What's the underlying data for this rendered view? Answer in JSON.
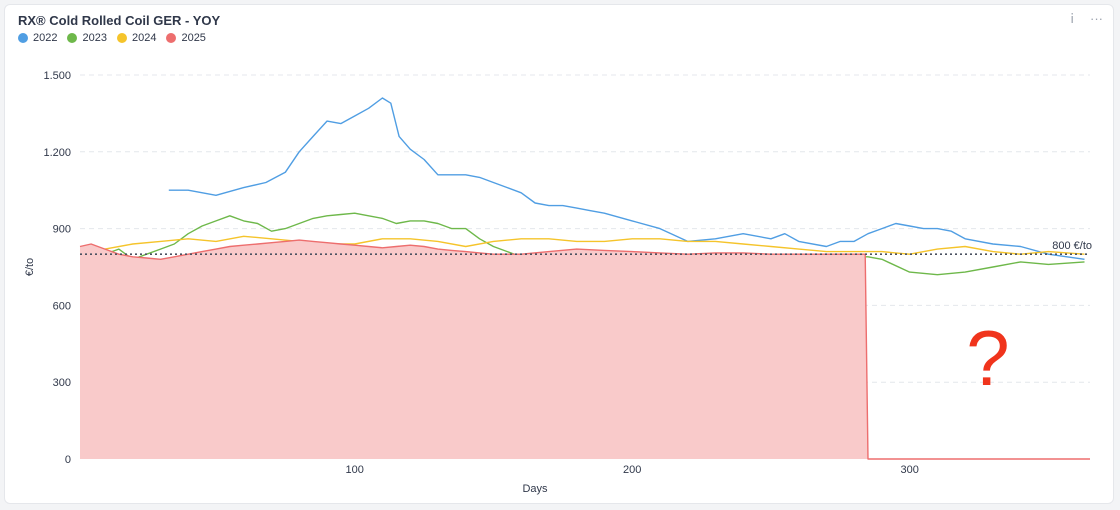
{
  "header": {
    "title": "RX® Cold Rolled Coil GER - YOY",
    "info_icon": "info-icon",
    "more_icon": "more-icon"
  },
  "annotation": {
    "question_mark": "?",
    "question_color": "#f0341c"
  },
  "chart_data": {
    "type": "line",
    "title": "RX® Cold Rolled Coil GER - YOY",
    "xlabel": "Days",
    "ylabel": "€/to",
    "xlim": [
      1,
      365
    ],
    "ylim": [
      0,
      1500
    ],
    "x_ticks": [
      100,
      200,
      300
    ],
    "x_tick_labels": [
      "100",
      "200",
      "300"
    ],
    "y_ticks": [
      0,
      300,
      600,
      900,
      1200,
      1500
    ],
    "y_tick_labels": [
      "0",
      "300",
      "600",
      "900",
      "1.200",
      "1.500"
    ],
    "grid": "horizontal dashed",
    "legend": "top-left",
    "reference_line": {
      "value": 800,
      "label": "800 €/to",
      "style": "dotted"
    },
    "series": [
      {
        "name": "2022",
        "color": "#509ee3",
        "x": [
          33,
          40,
          50,
          60,
          68,
          75,
          80,
          85,
          90,
          95,
          100,
          105,
          110,
          113,
          116,
          120,
          125,
          130,
          135,
          140,
          145,
          150,
          155,
          160,
          165,
          170,
          175,
          180,
          185,
          190,
          200,
          210,
          220,
          230,
          240,
          250,
          255,
          260,
          270,
          275,
          280,
          285,
          290,
          295,
          300,
          305,
          310,
          315,
          320,
          330,
          340,
          350,
          363
        ],
        "y": [
          1050,
          1050,
          1030,
          1060,
          1080,
          1120,
          1200,
          1260,
          1320,
          1310,
          1340,
          1370,
          1410,
          1390,
          1260,
          1210,
          1170,
          1110,
          1110,
          1110,
          1100,
          1080,
          1060,
          1040,
          1000,
          990,
          990,
          980,
          970,
          960,
          930,
          900,
          850,
          860,
          880,
          860,
          880,
          850,
          830,
          850,
          850,
          880,
          900,
          920,
          910,
          900,
          900,
          890,
          860,
          840,
          830,
          800,
          780
        ]
      },
      {
        "name": "2023",
        "color": "#6eb84a",
        "x": [
          1,
          10,
          15,
          20,
          25,
          30,
          35,
          40,
          45,
          50,
          55,
          60,
          65,
          70,
          75,
          80,
          85,
          90,
          95,
          100,
          105,
          110,
          115,
          120,
          125,
          130,
          135,
          140,
          145,
          150,
          155,
          160,
          170,
          180,
          190,
          200,
          210,
          220,
          230,
          240,
          250,
          260,
          270,
          280,
          285,
          290,
          300,
          310,
          320,
          330,
          340,
          350,
          363
        ],
        "y": [
          800,
          800,
          820,
          780,
          800,
          820,
          840,
          880,
          910,
          930,
          950,
          930,
          920,
          890,
          900,
          920,
          940,
          950,
          955,
          960,
          950,
          940,
          920,
          930,
          930,
          920,
          900,
          900,
          860,
          830,
          810,
          790,
          780,
          790,
          800,
          780,
          780,
          760,
          740,
          770,
          790,
          800,
          800,
          790,
          790,
          780,
          730,
          720,
          730,
          750,
          770,
          760,
          770
        ]
      },
      {
        "name": "2024",
        "color": "#f5c42b",
        "x": [
          1,
          10,
          20,
          30,
          40,
          50,
          60,
          70,
          80,
          90,
          100,
          110,
          120,
          130,
          140,
          150,
          160,
          170,
          180,
          190,
          200,
          210,
          220,
          230,
          240,
          250,
          260,
          270,
          280,
          290,
          300,
          310,
          320,
          330,
          340,
          350,
          363
        ],
        "y": [
          810,
          820,
          840,
          850,
          860,
          850,
          870,
          860,
          850,
          840,
          840,
          860,
          860,
          850,
          830,
          850,
          860,
          860,
          850,
          850,
          860,
          860,
          850,
          850,
          840,
          830,
          820,
          810,
          810,
          810,
          800,
          820,
          830,
          810,
          800,
          810,
          800
        ]
      },
      {
        "name": "2025",
        "color": "#ed6e6e",
        "x": [
          1,
          5,
          10,
          15,
          20,
          25,
          30,
          35,
          40,
          45,
          50,
          55,
          60,
          65,
          70,
          75,
          80,
          85,
          90,
          95,
          100,
          105,
          110,
          115,
          120,
          125,
          130,
          135,
          140,
          145,
          150,
          160,
          170,
          180,
          190,
          200,
          210,
          220,
          230,
          240,
          250,
          260,
          270,
          280,
          284,
          285,
          365
        ],
        "y": [
          830,
          840,
          820,
          800,
          790,
          785,
          780,
          790,
          800,
          810,
          820,
          830,
          835,
          840,
          845,
          850,
          855,
          850,
          845,
          840,
          835,
          830,
          825,
          830,
          835,
          830,
          820,
          815,
          810,
          805,
          800,
          800,
          810,
          820,
          815,
          810,
          805,
          800,
          805,
          805,
          800,
          800,
          800,
          800,
          800,
          0,
          0
        ]
      }
    ]
  }
}
